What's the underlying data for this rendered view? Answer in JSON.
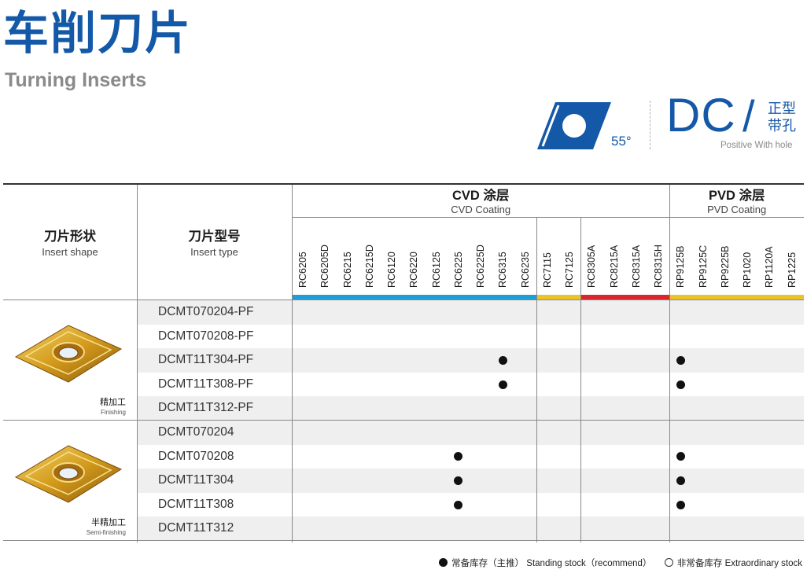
{
  "title": {
    "cn": "车削刀片",
    "en": "Turning Inserts"
  },
  "insert_type": {
    "angle": "55°",
    "code": "DC",
    "slash": "/",
    "desc_cn_1": "正型",
    "desc_cn_2": "带孔",
    "desc_en": "Positive With hole",
    "icon": "diamond-insert-icon",
    "color": "#1458a8"
  },
  "table": {
    "headers": {
      "shape_cn": "刀片形状",
      "shape_en": "Insert shape",
      "type_cn": "刀片型号",
      "type_en": "Insert type",
      "cvd_cn": "CVD 涂层",
      "cvd_en": "CVD Coating",
      "pvd_cn": "PVD 涂层",
      "pvd_en": "PVD Coating"
    },
    "grades": [
      "RC6205",
      "RC6205D",
      "RC6215",
      "RC6215D",
      "RC6120",
      "RC6220",
      "RC6125",
      "RC6225",
      "RC6225D",
      "RC6315",
      "RC6235",
      "RC7115",
      "RC7125",
      "RC8305A",
      "RC8215A",
      "RC8315A",
      "RC8315H",
      "RP9125B",
      "RP9125C",
      "RP9225B",
      "RP1020",
      "RP1120A",
      "RP1225"
    ],
    "grade_group_colors": {
      "cvd_6": "#1d9fd6",
      "cvd_7": "#e9c328",
      "cvd_8": "#d9252b",
      "pvd": "#e9c328"
    },
    "groups": [
      {
        "operation_cn": "精加工",
        "operation_en": "Finishing",
        "image": "insert-finishing-photo",
        "rows": [
          {
            "type": "DCMT070204-PF",
            "stock": []
          },
          {
            "type": "DCMT070208-PF",
            "stock": []
          },
          {
            "type": "DCMT11T304-PF",
            "stock": [
              "RC6315",
              "RP9125B"
            ]
          },
          {
            "type": "DCMT11T308-PF",
            "stock": [
              "RC6315",
              "RP9125B"
            ]
          },
          {
            "type": "DCMT11T312-PF",
            "stock": []
          }
        ]
      },
      {
        "operation_cn": "半精加工",
        "operation_en": "Semi-finishing",
        "image": "insert-semi-finishing-photo",
        "rows": [
          {
            "type": "DCMT070204",
            "stock": []
          },
          {
            "type": "DCMT070208",
            "stock": [
              "RC6225",
              "RP9125B"
            ]
          },
          {
            "type": "DCMT11T304",
            "stock": [
              "RC6225",
              "RP9125B"
            ]
          },
          {
            "type": "DCMT11T308",
            "stock": [
              "RC6225",
              "RP9125B"
            ]
          },
          {
            "type": "DCMT11T312",
            "stock": []
          }
        ]
      }
    ]
  },
  "legend": {
    "standing_cn": "常备库存（主推）",
    "standing_en": "Standing stock（recommend）",
    "extra_cn": "非常备库存",
    "extra_en": "Extraordinary stock"
  }
}
